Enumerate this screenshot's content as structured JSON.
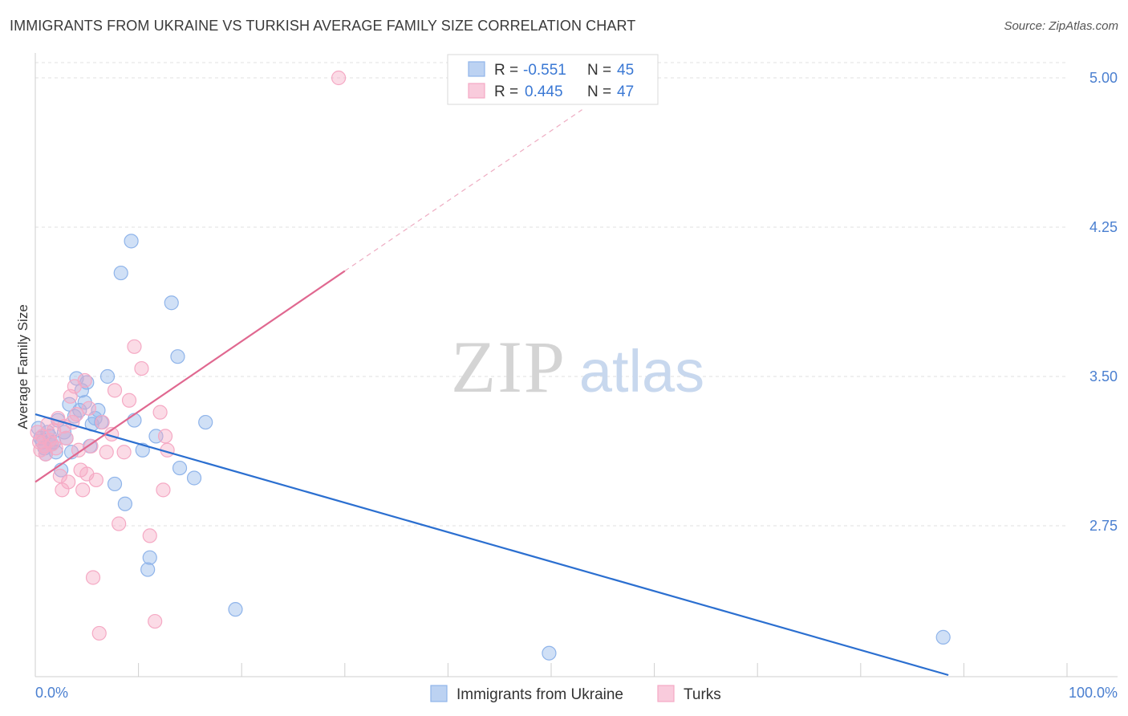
{
  "title": "IMMIGRANTS FROM UKRAINE VS TURKISH AVERAGE FAMILY SIZE CORRELATION CHART",
  "source": "Source: ZipAtlas.com",
  "watermark": {
    "zip": "ZIP",
    "atlas": "atlas"
  },
  "chart_data": {
    "type": "scatter",
    "title": "IMMIGRANTS FROM UKRAINE VS TURKISH AVERAGE FAMILY SIZE CORRELATION CHART",
    "xlabel": "",
    "ylabel": "Average Family Size",
    "xlim": [
      0,
      100
    ],
    "ylim": [
      2.0,
      5.1
    ],
    "x_tick_labels": [
      "0.0%",
      "100.0%"
    ],
    "y_ticks": [
      2.75,
      3.5,
      4.25,
      5.0
    ],
    "y_tick_labels": [
      "2.75",
      "3.50",
      "4.25",
      "5.00"
    ],
    "grid": true,
    "legend_position": "top-center",
    "series": [
      {
        "name": "Immigrants from Ukraine",
        "color": "#8fb4ea",
        "line_color": "#2b6fd0",
        "r": "-0.551",
        "n": "45",
        "trend": {
          "x0": 0,
          "y0": 3.31,
          "x1": 88.5,
          "y1": 2.0,
          "dashed_to": null
        },
        "x": [
          0.3,
          0.5,
          0.7,
          0.9,
          1.0,
          1.2,
          1.4,
          1.6,
          1.8,
          2.0,
          2.2,
          2.5,
          2.8,
          3.0,
          3.3,
          3.5,
          3.8,
          4.0,
          4.3,
          4.5,
          4.8,
          5.0,
          5.3,
          5.5,
          5.8,
          6.1,
          6.4,
          7.0,
          7.7,
          8.3,
          8.7,
          9.3,
          9.6,
          10.4,
          10.9,
          11.1,
          11.7,
          13.2,
          13.8,
          14.0,
          15.4,
          16.5,
          19.4,
          49.8,
          88.0
        ],
        "y": [
          3.24,
          3.19,
          3.17,
          3.14,
          3.11,
          3.22,
          3.2,
          3.16,
          3.17,
          3.12,
          3.28,
          3.03,
          3.22,
          3.19,
          3.36,
          3.12,
          3.3,
          3.49,
          3.33,
          3.43,
          3.37,
          3.47,
          3.15,
          3.26,
          3.29,
          3.33,
          3.27,
          3.5,
          2.96,
          4.02,
          2.86,
          4.18,
          3.28,
          3.13,
          2.53,
          2.59,
          3.2,
          3.87,
          3.6,
          3.04,
          2.99,
          3.27,
          2.33,
          2.11,
          2.19
        ]
      },
      {
        "name": "Turks",
        "color": "#f5a9c4",
        "line_color": "#e06890",
        "r": "0.445",
        "n": "47",
        "trend": {
          "x0": 0,
          "y0": 2.97,
          "x1": 30,
          "y1": 4.03,
          "dashed_to": {
            "x": 53,
            "y": 4.84
          }
        },
        "x": [
          0.2,
          0.4,
          0.5,
          0.7,
          0.9,
          1.0,
          1.2,
          1.4,
          1.6,
          1.8,
          2.0,
          2.2,
          2.4,
          2.6,
          2.8,
          3.0,
          3.2,
          3.4,
          3.6,
          3.8,
          4.0,
          4.2,
          4.4,
          4.6,
          4.8,
          5.0,
          5.2,
          5.4,
          5.6,
          5.9,
          6.2,
          6.5,
          6.9,
          7.4,
          7.7,
          8.1,
          8.6,
          9.1,
          9.6,
          10.3,
          11.1,
          11.6,
          12.1,
          12.4,
          12.6,
          12.8,
          29.4
        ],
        "y": [
          3.22,
          3.17,
          3.13,
          3.2,
          3.15,
          3.11,
          3.26,
          3.18,
          3.16,
          3.23,
          3.14,
          3.29,
          3.0,
          2.93,
          3.25,
          3.19,
          2.97,
          3.4,
          3.27,
          3.45,
          3.31,
          3.13,
          3.03,
          2.93,
          3.48,
          3.01,
          3.34,
          3.15,
          2.49,
          2.98,
          2.21,
          3.27,
          3.12,
          3.21,
          3.43,
          2.76,
          3.12,
          3.38,
          3.65,
          3.54,
          2.7,
          2.27,
          3.32,
          2.93,
          3.2,
          3.13,
          5.0
        ]
      }
    ]
  }
}
